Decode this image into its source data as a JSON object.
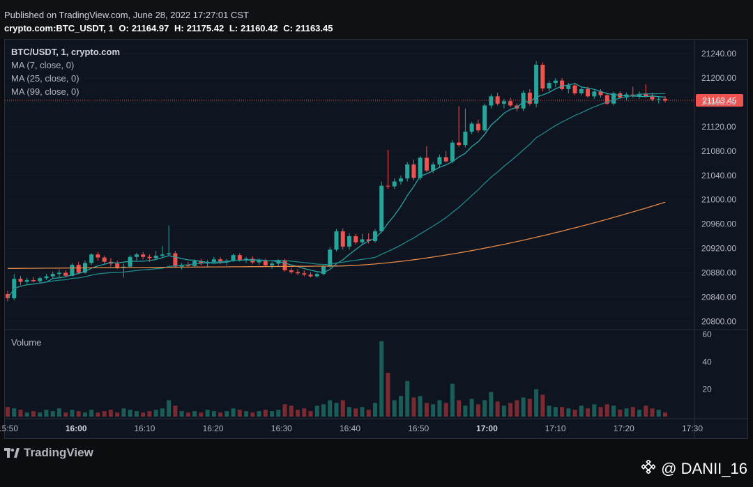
{
  "header": {
    "published": "Published on TradingView.com, June 28, 2022 17:27:01 CST",
    "symbol_line": "crypto.com:BTC_USDT, 1",
    "o_label": "O:",
    "o_value": "21164.97",
    "h_label": "H:",
    "h_value": "21175.42",
    "l_label": "L:",
    "l_value": "21160.42",
    "c_label": "C:",
    "c_value": "21163.45"
  },
  "legend": {
    "symbol": "BTC/USDT, 1, crypto.com",
    "ma7": "MA (7, close, 0)",
    "ma25": "MA (25, close, 0)",
    "ma99": "MA (99, close, 0)",
    "volume": "Volume"
  },
  "footer": {
    "brand": "TradingView",
    "watermark": "@ DANII_16"
  },
  "colors": {
    "up": "#26a69a",
    "down": "#ef5350",
    "ma7": "#2aa4a4",
    "ma25": "#1f8a8a",
    "ma99": "#e58a47",
    "price_tag": "#ef5350"
  },
  "chart_data": {
    "type": "candlestick",
    "price_axis": {
      "min": 20800,
      "max": 21240,
      "ticks": [
        "21240.00",
        "21200.00",
        "21160.00",
        "21120.00",
        "21080.00",
        "21040.00",
        "21000.00",
        "20960.00",
        "20920.00",
        "20880.00",
        "20840.00",
        "20800.00"
      ]
    },
    "last_price": "21163.45",
    "time_axis": [
      "15:50",
      "16:00",
      "16:10",
      "16:20",
      "16:30",
      "16:40",
      "16:50",
      "17:00",
      "17:10",
      "17:20",
      "17:30"
    ],
    "volume_axis": {
      "ticks": [
        "60",
        "40",
        "20"
      ]
    },
    "candles": [
      {
        "o": 20845,
        "h": 20850,
        "l": 20833,
        "c": 20838,
        "v": 7
      },
      {
        "o": 20838,
        "h": 20878,
        "l": 20835,
        "c": 20870,
        "v": 6
      },
      {
        "o": 20870,
        "h": 20875,
        "l": 20860,
        "c": 20865,
        "v": 5
      },
      {
        "o": 20865,
        "h": 20872,
        "l": 20862,
        "c": 20868,
        "v": 3
      },
      {
        "o": 20868,
        "h": 20873,
        "l": 20864,
        "c": 20866,
        "v": 4
      },
      {
        "o": 20866,
        "h": 20874,
        "l": 20862,
        "c": 20871,
        "v": 3
      },
      {
        "o": 20871,
        "h": 20878,
        "l": 20868,
        "c": 20874,
        "v": 5
      },
      {
        "o": 20874,
        "h": 20882,
        "l": 20870,
        "c": 20878,
        "v": 4
      },
      {
        "o": 20878,
        "h": 20885,
        "l": 20872,
        "c": 20880,
        "v": 6
      },
      {
        "o": 20880,
        "h": 20884,
        "l": 20873,
        "c": 20875,
        "v": 3
      },
      {
        "o": 20875,
        "h": 20896,
        "l": 20874,
        "c": 20893,
        "v": 5
      },
      {
        "o": 20893,
        "h": 20898,
        "l": 20878,
        "c": 20880,
        "v": 4
      },
      {
        "o": 20880,
        "h": 20900,
        "l": 20878,
        "c": 20896,
        "v": 3
      },
      {
        "o": 20896,
        "h": 20912,
        "l": 20893,
        "c": 20910,
        "v": 5
      },
      {
        "o": 20910,
        "h": 20914,
        "l": 20900,
        "c": 20905,
        "v": 3
      },
      {
        "o": 20905,
        "h": 20908,
        "l": 20895,
        "c": 20898,
        "v": 4
      },
      {
        "o": 20898,
        "h": 20904,
        "l": 20890,
        "c": 20895,
        "v": 5
      },
      {
        "o": 20895,
        "h": 20900,
        "l": 20886,
        "c": 20888,
        "v": 3
      },
      {
        "o": 20888,
        "h": 20895,
        "l": 20872,
        "c": 20890,
        "v": 6
      },
      {
        "o": 20890,
        "h": 20909,
        "l": 20888,
        "c": 20906,
        "v": 5
      },
      {
        "o": 20906,
        "h": 20913,
        "l": 20900,
        "c": 20910,
        "v": 4
      },
      {
        "o": 20910,
        "h": 20914,
        "l": 20902,
        "c": 20906,
        "v": 3
      },
      {
        "o": 20906,
        "h": 20910,
        "l": 20898,
        "c": 20904,
        "v": 4
      },
      {
        "o": 20904,
        "h": 20916,
        "l": 20902,
        "c": 20908,
        "v": 5
      },
      {
        "o": 20908,
        "h": 20924,
        "l": 20904,
        "c": 20910,
        "v": 6
      },
      {
        "o": 20910,
        "h": 20958,
        "l": 20908,
        "c": 20912,
        "v": 12
      },
      {
        "o": 20912,
        "h": 20916,
        "l": 20888,
        "c": 20890,
        "v": 8
      },
      {
        "o": 20890,
        "h": 20896,
        "l": 20885,
        "c": 20893,
        "v": 4
      },
      {
        "o": 20893,
        "h": 20898,
        "l": 20888,
        "c": 20891,
        "v": 3
      },
      {
        "o": 20891,
        "h": 20902,
        "l": 20889,
        "c": 20899,
        "v": 4
      },
      {
        "o": 20899,
        "h": 20903,
        "l": 20892,
        "c": 20895,
        "v": 3
      },
      {
        "o": 20895,
        "h": 20901,
        "l": 20889,
        "c": 20898,
        "v": 5
      },
      {
        "o": 20898,
        "h": 20906,
        "l": 20895,
        "c": 20902,
        "v": 4
      },
      {
        "o": 20902,
        "h": 20906,
        "l": 20894,
        "c": 20897,
        "v": 3
      },
      {
        "o": 20897,
        "h": 20903,
        "l": 20892,
        "c": 20900,
        "v": 4
      },
      {
        "o": 20900,
        "h": 20912,
        "l": 20898,
        "c": 20909,
        "v": 6
      },
      {
        "o": 20909,
        "h": 20912,
        "l": 20898,
        "c": 20901,
        "v": 5
      },
      {
        "o": 20901,
        "h": 20906,
        "l": 20896,
        "c": 20903,
        "v": 4
      },
      {
        "o": 20903,
        "h": 20907,
        "l": 20894,
        "c": 20897,
        "v": 3
      },
      {
        "o": 20897,
        "h": 20904,
        "l": 20893,
        "c": 20900,
        "v": 4
      },
      {
        "o": 20900,
        "h": 20903,
        "l": 20890,
        "c": 20892,
        "v": 5
      },
      {
        "o": 20892,
        "h": 20898,
        "l": 20886,
        "c": 20895,
        "v": 4
      },
      {
        "o": 20895,
        "h": 20902,
        "l": 20890,
        "c": 20900,
        "v": 5
      },
      {
        "o": 20900,
        "h": 20903,
        "l": 20882,
        "c": 20884,
        "v": 9
      },
      {
        "o": 20884,
        "h": 20888,
        "l": 20878,
        "c": 20881,
        "v": 8
      },
      {
        "o": 20881,
        "h": 20886,
        "l": 20876,
        "c": 20879,
        "v": 5
      },
      {
        "o": 20879,
        "h": 20884,
        "l": 20874,
        "c": 20877,
        "v": 6
      },
      {
        "o": 20877,
        "h": 20881,
        "l": 20872,
        "c": 20874,
        "v": 4
      },
      {
        "o": 20874,
        "h": 20880,
        "l": 20872,
        "c": 20878,
        "v": 8
      },
      {
        "o": 20878,
        "h": 20892,
        "l": 20876,
        "c": 20890,
        "v": 9
      },
      {
        "o": 20890,
        "h": 20922,
        "l": 20888,
        "c": 20918,
        "v": 12
      },
      {
        "o": 20918,
        "h": 20952,
        "l": 20915,
        "c": 20948,
        "v": 10
      },
      {
        "o": 20948,
        "h": 20953,
        "l": 20918,
        "c": 20923,
        "v": 12
      },
      {
        "o": 20923,
        "h": 20945,
        "l": 20918,
        "c": 20940,
        "v": 7
      },
      {
        "o": 20940,
        "h": 20944,
        "l": 20926,
        "c": 20930,
        "v": 6
      },
      {
        "o": 20930,
        "h": 20944,
        "l": 20927,
        "c": 20935,
        "v": 7
      },
      {
        "o": 20935,
        "h": 20945,
        "l": 20928,
        "c": 20932,
        "v": 5
      },
      {
        "o": 20932,
        "h": 20952,
        "l": 20929,
        "c": 20948,
        "v": 10
      },
      {
        "o": 20948,
        "h": 21030,
        "l": 20946,
        "c": 21023,
        "v": 55
      },
      {
        "o": 21023,
        "h": 21082,
        "l": 21018,
        "c": 21022,
        "v": 32
      },
      {
        "o": 21022,
        "h": 21035,
        "l": 21018,
        "c": 21030,
        "v": 12
      },
      {
        "o": 21030,
        "h": 21040,
        "l": 21025,
        "c": 21035,
        "v": 15
      },
      {
        "o": 21035,
        "h": 21062,
        "l": 21030,
        "c": 21058,
        "v": 26
      },
      {
        "o": 21058,
        "h": 21066,
        "l": 21032,
        "c": 21036,
        "v": 14
      },
      {
        "o": 21036,
        "h": 21072,
        "l": 21032,
        "c": 21069,
        "v": 15
      },
      {
        "o": 21069,
        "h": 21088,
        "l": 21045,
        "c": 21048,
        "v": 10
      },
      {
        "o": 21048,
        "h": 21062,
        "l": 21044,
        "c": 21058,
        "v": 9
      },
      {
        "o": 21058,
        "h": 21074,
        "l": 21053,
        "c": 21070,
        "v": 12
      },
      {
        "o": 21070,
        "h": 21080,
        "l": 21061,
        "c": 21063,
        "v": 10
      },
      {
        "o": 21063,
        "h": 21098,
        "l": 21060,
        "c": 21094,
        "v": 24
      },
      {
        "o": 21094,
        "h": 21154,
        "l": 21087,
        "c": 21090,
        "v": 12
      },
      {
        "o": 21090,
        "h": 21150,
        "l": 21086,
        "c": 21112,
        "v": 8
      },
      {
        "o": 21112,
        "h": 21128,
        "l": 21108,
        "c": 21125,
        "v": 13
      },
      {
        "o": 21125,
        "h": 21132,
        "l": 21110,
        "c": 21114,
        "v": 9
      },
      {
        "o": 21114,
        "h": 21158,
        "l": 21112,
        "c": 21155,
        "v": 12
      },
      {
        "o": 21155,
        "h": 21174,
        "l": 21150,
        "c": 21170,
        "v": 18
      },
      {
        "o": 21170,
        "h": 21176,
        "l": 21155,
        "c": 21158,
        "v": 11
      },
      {
        "o": 21158,
        "h": 21166,
        "l": 21150,
        "c": 21162,
        "v": 8
      },
      {
        "o": 21162,
        "h": 21168,
        "l": 21152,
        "c": 21155,
        "v": 10
      },
      {
        "o": 21155,
        "h": 21158,
        "l": 21145,
        "c": 21150,
        "v": 12
      },
      {
        "o": 21150,
        "h": 21180,
        "l": 21146,
        "c": 21176,
        "v": 14
      },
      {
        "o": 21176,
        "h": 21182,
        "l": 21155,
        "c": 21158,
        "v": 13
      },
      {
        "o": 21158,
        "h": 21228,
        "l": 21152,
        "c": 21222,
        "v": 20
      },
      {
        "o": 21222,
        "h": 21226,
        "l": 21178,
        "c": 21183,
        "v": 16
      },
      {
        "o": 21183,
        "h": 21196,
        "l": 21178,
        "c": 21192,
        "v": 8
      },
      {
        "o": 21192,
        "h": 21200,
        "l": 21185,
        "c": 21196,
        "v": 7
      },
      {
        "o": 21196,
        "h": 21200,
        "l": 21180,
        "c": 21182,
        "v": 7
      },
      {
        "o": 21182,
        "h": 21192,
        "l": 21175,
        "c": 21188,
        "v": 6
      },
      {
        "o": 21188,
        "h": 21192,
        "l": 21172,
        "c": 21175,
        "v": 5
      },
      {
        "o": 21175,
        "h": 21185,
        "l": 21172,
        "c": 21182,
        "v": 8
      },
      {
        "o": 21182,
        "h": 21186,
        "l": 21168,
        "c": 21170,
        "v": 6
      },
      {
        "o": 21170,
        "h": 21180,
        "l": 21166,
        "c": 21178,
        "v": 9
      },
      {
        "o": 21178,
        "h": 21182,
        "l": 21168,
        "c": 21172,
        "v": 7
      },
      {
        "o": 21172,
        "h": 21176,
        "l": 21156,
        "c": 21158,
        "v": 9
      },
      {
        "o": 21158,
        "h": 21178,
        "l": 21155,
        "c": 21175,
        "v": 8
      },
      {
        "o": 21175,
        "h": 21178,
        "l": 21166,
        "c": 21168,
        "v": 5
      },
      {
        "o": 21168,
        "h": 21176,
        "l": 21163,
        "c": 21173,
        "v": 6
      },
      {
        "o": 21173,
        "h": 21186,
        "l": 21168,
        "c": 21170,
        "v": 7
      },
      {
        "o": 21170,
        "h": 21178,
        "l": 21166,
        "c": 21174,
        "v": 5
      },
      {
        "o": 21174,
        "h": 21190,
        "l": 21168,
        "c": 21170,
        "v": 8
      },
      {
        "o": 21170,
        "h": 21176,
        "l": 21162,
        "c": 21165,
        "v": 6
      },
      {
        "o": 21165,
        "h": 21170,
        "l": 21158,
        "c": 21166,
        "v": 5
      },
      {
        "o": 21166,
        "h": 21170,
        "l": 21160,
        "c": 21163,
        "v": 3
      }
    ]
  }
}
